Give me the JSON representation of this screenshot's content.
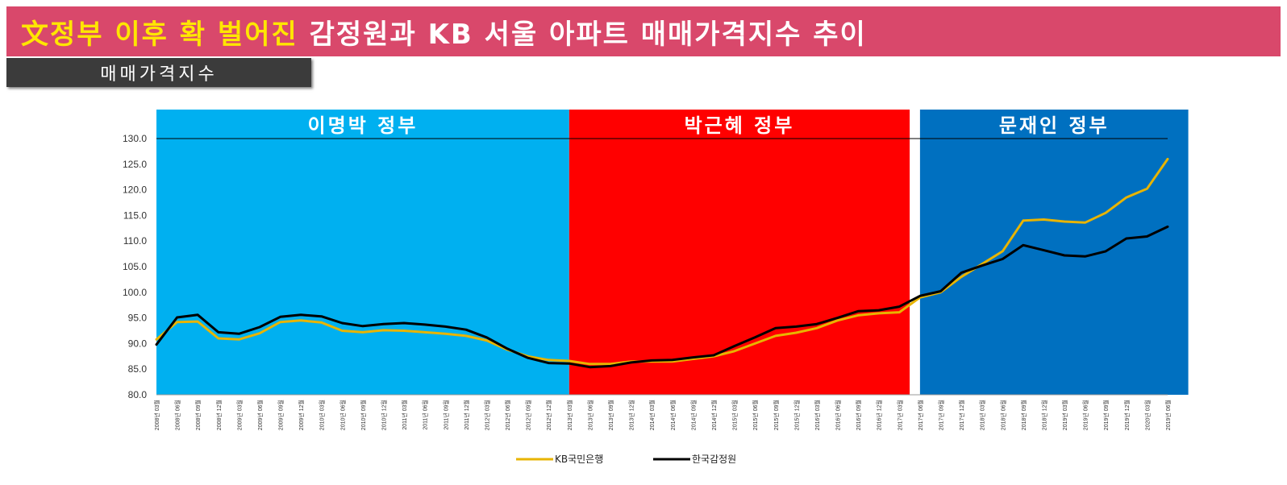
{
  "header": {
    "title_highlight": "文정부 이후 확 벌어진",
    "title_rest": "감정원과 KB 서울 아파트 매매가격지수 추이",
    "subtitle": "매매가격지수"
  },
  "colors": {
    "header_bg": "#d9486b",
    "highlight": "#ffe600",
    "era_lee": "#00b0f0",
    "era_park": "#ff0000",
    "era_moon": "#0070c0",
    "kb_line": "#e8b400",
    "kab_line": "#000000"
  },
  "chart_data": {
    "type": "line",
    "ylim": [
      80,
      130
    ],
    "yticks": [
      "80.0",
      "85.0",
      "90.0",
      "95.0",
      "100.0",
      "105.0",
      "110.0",
      "115.0",
      "120.0",
      "125.0",
      "130.0"
    ],
    "categories": [
      "2008년 03월",
      "2008년 06월",
      "2008년 09월",
      "2008년 12월",
      "2009년 03월",
      "2009년 06월",
      "2009년 09월",
      "2009년 12월",
      "2010년 03월",
      "2010년 06월",
      "2010년 09월",
      "2010년 12월",
      "2011년 03월",
      "2011년 06월",
      "2011년 09월",
      "2011년 12월",
      "2012년 03월",
      "2012년 06월",
      "2012년 09월",
      "2012년 12월",
      "2013년 03월",
      "2013년 06월",
      "2013년 09월",
      "2013년 12월",
      "2014년 03월",
      "2014년 06월",
      "2014년 09월",
      "2014년 12월",
      "2015년 03월",
      "2015년 06월",
      "2015년 09월",
      "2015년 12월",
      "2016년 03월",
      "2016년 06월",
      "2016년 09월",
      "2016년 12월",
      "2017년 03월",
      "2017년 06월",
      "2017년 09월",
      "2017년 12월",
      "2018년 03월",
      "2018년 06월",
      "2018년 09월",
      "2018년 12월",
      "2019년 03월",
      "2019년 06월",
      "2019년 09월",
      "2019년 12월",
      "2020년 03월",
      "2019년 06월"
    ],
    "eras": [
      {
        "label": "이명박 정부",
        "start": 0,
        "end": 20
      },
      {
        "label": "박근혜 정부",
        "start": 20,
        "end": 36.5
      },
      {
        "label": "문재인 정부",
        "start": 37,
        "end": 50
      }
    ],
    "series": [
      {
        "name": "KB국민은행",
        "values": [
          90.8,
          94.2,
          94.3,
          91.0,
          90.8,
          92.0,
          94.2,
          94.5,
          94.1,
          92.5,
          92.2,
          92.6,
          92.5,
          92.2,
          91.9,
          91.5,
          90.6,
          88.8,
          87.5,
          86.8,
          86.6,
          86.0,
          86.0,
          86.5,
          86.5,
          86.5,
          87.0,
          87.5,
          88.5,
          90.0,
          91.5,
          92.1,
          93.0,
          94.5,
          95.5,
          95.9,
          96.1,
          99.0,
          100.0,
          103.0,
          105.5,
          108.0,
          114.0,
          114.2,
          113.8,
          113.6,
          115.5,
          118.5,
          120.2,
          126.0
        ]
      },
      {
        "name": "한국감정원",
        "values": [
          89.8,
          95.1,
          95.6,
          92.2,
          91.9,
          93.2,
          95.2,
          95.6,
          95.3,
          94.0,
          93.4,
          93.8,
          94.0,
          93.7,
          93.3,
          92.7,
          91.2,
          89.0,
          87.2,
          86.2,
          86.1,
          85.4,
          85.6,
          86.3,
          86.7,
          86.8,
          87.3,
          87.7,
          89.5,
          91.2,
          93.0,
          93.3,
          93.8,
          95.0,
          96.3,
          96.5,
          97.2,
          99.3,
          100.2,
          103.8,
          105.2,
          106.5,
          109.2,
          108.2,
          107.2,
          107.0,
          108.0,
          110.5,
          110.9,
          112.8
        ]
      }
    ]
  }
}
